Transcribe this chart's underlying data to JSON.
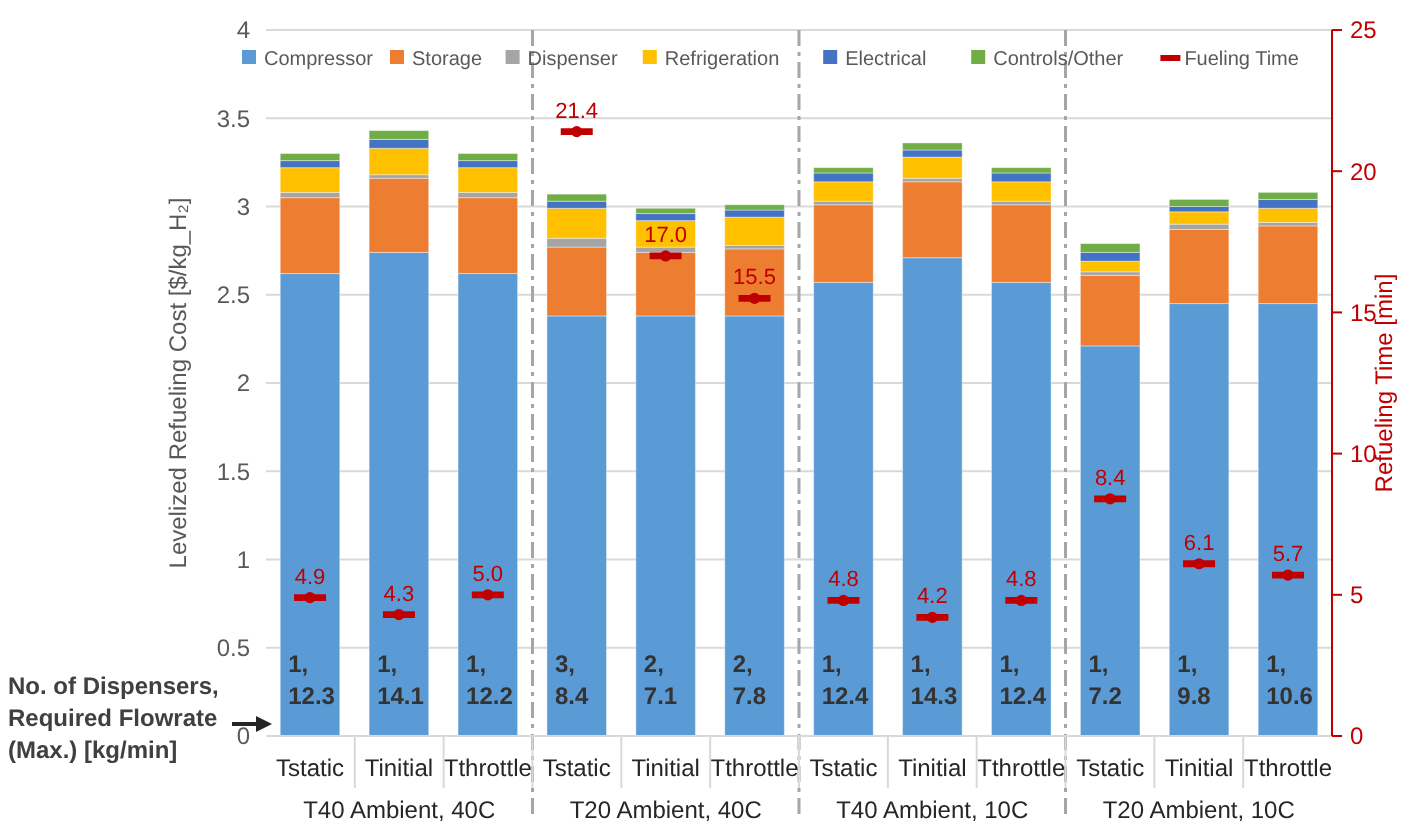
{
  "chart_data": {
    "type": "bar",
    "stacked": true,
    "ylabel": "Levelized Refueling Cost [$/kg_H₂]",
    "y2label": "Refueling Time [min]",
    "categories": [
      "Tstatic",
      "Tinitial",
      "Tthrottle",
      "Tstatic",
      "Tinitial",
      "Tthrottle",
      "Tstatic",
      "Tinitial",
      "Tthrottle",
      "Tstatic",
      "Tinitial",
      "Tthrottle"
    ],
    "ylim": [
      0,
      4
    ],
    "yticks": [
      0,
      0.5,
      1,
      1.5,
      2,
      2.5,
      3,
      3.5,
      4
    ],
    "y2lim": [
      0,
      25
    ],
    "y2ticks": [
      0,
      5,
      10,
      15,
      20,
      25
    ],
    "grid": "y",
    "legend": "top",
    "series": [
      {
        "name": "Compressor",
        "color": "#5b9bd5",
        "values": [
          2.62,
          2.74,
          2.62,
          2.38,
          2.38,
          2.38,
          2.57,
          2.71,
          2.57,
          2.21,
          2.45,
          2.45
        ]
      },
      {
        "name": "Storage",
        "color": "#ed7d31",
        "values": [
          0.43,
          0.42,
          0.43,
          0.39,
          0.36,
          0.38,
          0.44,
          0.43,
          0.44,
          0.4,
          0.42,
          0.44
        ]
      },
      {
        "name": "Dispenser",
        "color": "#a5a5a5",
        "values": [
          0.03,
          0.02,
          0.03,
          0.05,
          0.03,
          0.02,
          0.02,
          0.02,
          0.02,
          0.02,
          0.03,
          0.02
        ]
      },
      {
        "name": "Refrigeration",
        "color": "#ffc000",
        "values": [
          0.14,
          0.15,
          0.14,
          0.17,
          0.15,
          0.16,
          0.11,
          0.12,
          0.11,
          0.06,
          0.07,
          0.08
        ]
      },
      {
        "name": "Electrical",
        "color": "#4472c4",
        "values": [
          0.04,
          0.05,
          0.04,
          0.04,
          0.04,
          0.04,
          0.05,
          0.04,
          0.05,
          0.05,
          0.03,
          0.05
        ]
      },
      {
        "name": "Controls/Other",
        "color": "#70ad47",
        "values": [
          0.04,
          0.05,
          0.04,
          0.04,
          0.03,
          0.03,
          0.03,
          0.04,
          0.03,
          0.05,
          0.04,
          0.04
        ]
      },
      {
        "name": "Fueling Time",
        "type": "scatter",
        "axis": "y2",
        "color": "#c00000",
        "values": [
          4.9,
          4.3,
          5.0,
          21.4,
          17.0,
          15.5,
          4.8,
          4.2,
          4.8,
          8.4,
          6.1,
          5.7
        ],
        "value_labels": [
          "4.9",
          "4.3",
          "5.0",
          "21.4",
          "17.0",
          "15.5",
          "4.8",
          "4.2",
          "4.8",
          "8.4",
          "6.1",
          "5.7"
        ]
      }
    ],
    "annotations": [
      "No. of Dispensers, Required Flowrate (Max.) [kg/min]",
      "1, 12.3",
      "1, 14.1",
      "1, 12.2",
      "3, 8.4",
      "2, 7.1",
      "2, 7.8",
      "1, 12.4",
      "1, 14.3",
      "1, 12.4",
      "1, 7.2",
      "1, 9.8",
      "1, 10.6",
      "T40 Ambient, 40C",
      "T20 Ambient, 40C",
      "T40 Ambient, 10C",
      "T20 Ambient, 10C"
    ]
  }
}
